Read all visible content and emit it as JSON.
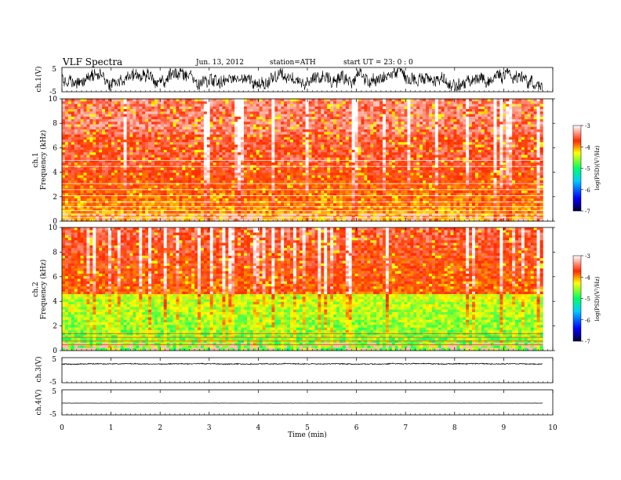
{
  "header": {
    "title": "VLF  Spectra",
    "date": "Jun. 13, 2012",
    "station": "station=ATH",
    "start": "start  UT  =   23: 0  : 0"
  },
  "chart_data": [
    {
      "type": "line",
      "panel": "ch1-waveform",
      "ylabel": "ch.1(V)",
      "ylim": [
        -5,
        5
      ],
      "yticks": [
        "5",
        "-5"
      ],
      "series_color": "#000000",
      "description_level": "high-amplitude noisy waveform"
    },
    {
      "type": "heatmap",
      "panel": "ch1-spectrogram",
      "ylabel": "ch.1\nFrequency  (kHz)",
      "ylabel_lines": [
        "ch.1",
        "Frequency  (kHz)"
      ],
      "ylim": [
        0,
        10
      ],
      "yticks": [
        "0",
        "2",
        "4",
        "6",
        "8",
        "10"
      ],
      "colorbar": {
        "label": "log(PSD)(V²/Hz)",
        "range": [
          -7,
          -3
        ],
        "ticks": [
          "-3",
          "-4",
          "-5",
          "-6",
          "-7"
        ]
      }
    },
    {
      "type": "heatmap",
      "panel": "ch2-spectrogram",
      "ylabel_lines": [
        "ch.2",
        "Frequency  (kHz)"
      ],
      "ylim": [
        0,
        10
      ],
      "yticks": [
        "0",
        "2",
        "4",
        "6",
        "8",
        "10"
      ],
      "colorbar": {
        "label": "log(PSD)(V²/Hz)",
        "range": [
          -7,
          -3
        ],
        "ticks": [
          "-3",
          "-4",
          "-5",
          "-6",
          "-7"
        ]
      }
    },
    {
      "type": "line",
      "panel": "ch3-waveform",
      "ylabel": "ch.3(V)",
      "ylim": [
        -5,
        5
      ],
      "yticks": [
        "5",
        "-5"
      ]
    },
    {
      "type": "line",
      "panel": "ch4-waveform",
      "ylabel": "ch.4(V)",
      "ylim": [
        -5,
        5
      ],
      "yticks": [
        "5",
        "-5"
      ]
    }
  ],
  "xaxis": {
    "label": "Time  (min)",
    "xlim": [
      0,
      10
    ],
    "ticks": [
      "0",
      "1",
      "2",
      "3",
      "4",
      "5",
      "6",
      "7",
      "8",
      "9",
      "10"
    ],
    "data_end": 9.8
  },
  "colormap": [
    "#000033",
    "#0000ff",
    "#00ccff",
    "#00ff66",
    "#ffff00",
    "#ff2a00",
    "#ffffff"
  ]
}
